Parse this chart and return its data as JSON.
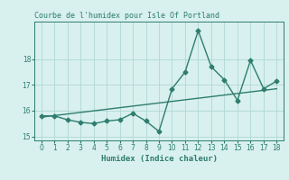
{
  "x": [
    0,
    1,
    2,
    3,
    4,
    5,
    6,
    7,
    8,
    9,
    10,
    11,
    12,
    13,
    14,
    15,
    16,
    17,
    18
  ],
  "y": [
    15.8,
    15.8,
    15.65,
    15.55,
    15.5,
    15.6,
    15.65,
    15.9,
    15.6,
    15.2,
    16.85,
    17.5,
    19.1,
    17.7,
    17.2,
    16.4,
    17.95,
    16.85,
    17.15
  ],
  "trend_x": [
    0,
    18
  ],
  "trend_y": [
    15.75,
    16.85
  ],
  "line_color": "#2e7d6e",
  "trend_color": "#2e7d6e",
  "bg_color": "#d8f0ee",
  "grid_color": "#b0d8d4",
  "xlabel": "Humidex (Indice chaleur)",
  "title": "Courbe de l'humidex pour Isle Of Portland",
  "xlim": [
    -0.5,
    18.5
  ],
  "ylim": [
    14.85,
    19.45
  ],
  "yticks": [
    15,
    16,
    17,
    18
  ],
  "xticks": [
    0,
    1,
    2,
    3,
    4,
    5,
    6,
    7,
    8,
    9,
    10,
    11,
    12,
    13,
    14,
    15,
    16,
    17,
    18
  ],
  "marker_size": 2.5,
  "line_width": 1.0,
  "title_fontsize": 6,
  "label_fontsize": 6.5,
  "tick_fontsize": 5.5
}
